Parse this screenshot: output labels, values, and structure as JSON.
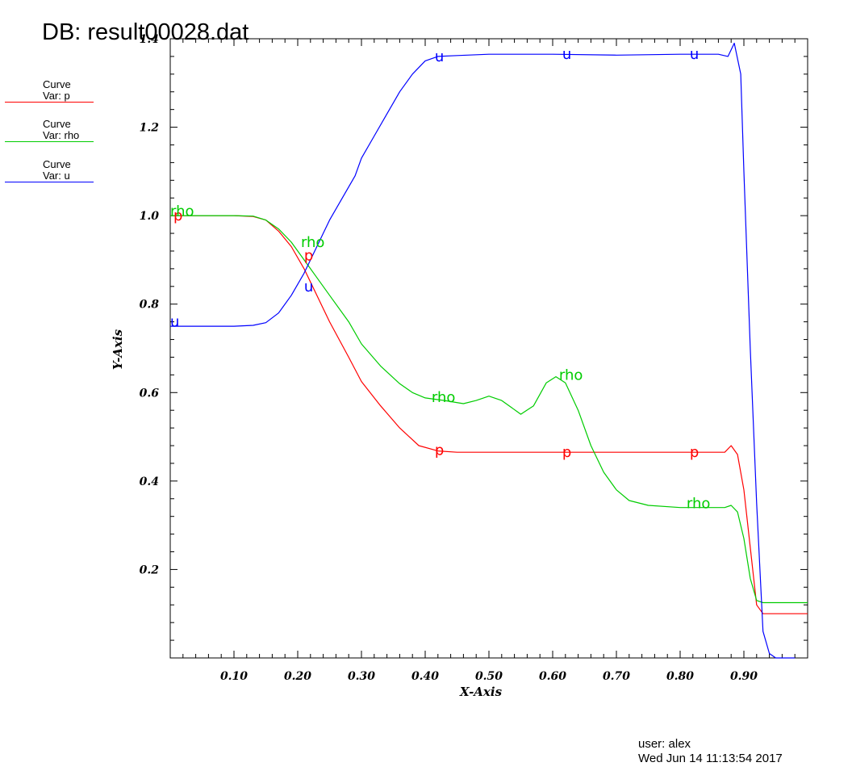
{
  "header": {
    "db_title": "DB: result00028.dat"
  },
  "legend": [
    {
      "line1": "Curve",
      "line2": "Var: p",
      "color": "#ff0000"
    },
    {
      "line1": "Curve",
      "line2": "Var: rho",
      "color": "#00cc00"
    },
    {
      "line1": "Curve",
      "line2": "Var: u",
      "color": "#0000ff"
    }
  ],
  "footer": {
    "user": "user: alex",
    "date": "Wed Jun 14 11:13:54 2017"
  },
  "chart_data": {
    "type": "line",
    "title": "",
    "xlabel": "X-Axis",
    "ylabel": "Y-Axis",
    "xlim": [
      0.0,
      1.0
    ],
    "ylim": [
      0.0,
      1.4
    ],
    "xticks": [
      0.1,
      0.2,
      0.3,
      0.4,
      0.5,
      0.6,
      0.7,
      0.8,
      0.9
    ],
    "xtick_labels": [
      "0.10",
      "0.20",
      "0.30",
      "0.40",
      "0.50",
      "0.60",
      "0.70",
      "0.80",
      "0.90"
    ],
    "yticks": [
      0.2,
      0.4,
      0.6,
      0.8,
      1.0,
      1.2,
      1.4
    ],
    "ytick_labels": [
      "0.2",
      "0.4",
      "0.6",
      "0.8",
      "1.0",
      "1.2",
      "1.4"
    ],
    "series": [
      {
        "name": "p",
        "color": "#ff0000",
        "points": [
          [
            0.0,
            1.0
          ],
          [
            0.05,
            1.0
          ],
          [
            0.1,
            1.0
          ],
          [
            0.13,
            0.998
          ],
          [
            0.15,
            0.99
          ],
          [
            0.17,
            0.965
          ],
          [
            0.19,
            0.93
          ],
          [
            0.21,
            0.88
          ],
          [
            0.23,
            0.82
          ],
          [
            0.25,
            0.76
          ],
          [
            0.28,
            0.68
          ],
          [
            0.3,
            0.625
          ],
          [
            0.33,
            0.57
          ],
          [
            0.36,
            0.52
          ],
          [
            0.39,
            0.48
          ],
          [
            0.42,
            0.468
          ],
          [
            0.45,
            0.465
          ],
          [
            0.5,
            0.465
          ],
          [
            0.6,
            0.465
          ],
          [
            0.7,
            0.465
          ],
          [
            0.8,
            0.465
          ],
          [
            0.87,
            0.465
          ],
          [
            0.88,
            0.48
          ],
          [
            0.89,
            0.46
          ],
          [
            0.9,
            0.38
          ],
          [
            0.91,
            0.25
          ],
          [
            0.92,
            0.12
          ],
          [
            0.93,
            0.1
          ],
          [
            0.95,
            0.1
          ],
          [
            1.0,
            0.1
          ]
        ],
        "label_points": [
          [
            0.005,
            1.0
          ],
          [
            0.21,
            0.91
          ],
          [
            0.415,
            0.47
          ],
          [
            0.615,
            0.465
          ],
          [
            0.815,
            0.465
          ]
        ]
      },
      {
        "name": "rho",
        "color": "#00cc00",
        "points": [
          [
            0.0,
            1.0
          ],
          [
            0.05,
            1.0
          ],
          [
            0.1,
            1.0
          ],
          [
            0.13,
            0.999
          ],
          [
            0.15,
            0.99
          ],
          [
            0.17,
            0.97
          ],
          [
            0.19,
            0.94
          ],
          [
            0.21,
            0.9
          ],
          [
            0.23,
            0.86
          ],
          [
            0.25,
            0.82
          ],
          [
            0.28,
            0.76
          ],
          [
            0.3,
            0.71
          ],
          [
            0.33,
            0.66
          ],
          [
            0.36,
            0.62
          ],
          [
            0.38,
            0.6
          ],
          [
            0.4,
            0.588
          ],
          [
            0.43,
            0.582
          ],
          [
            0.46,
            0.575
          ],
          [
            0.48,
            0.582
          ],
          [
            0.5,
            0.592
          ],
          [
            0.52,
            0.582
          ],
          [
            0.55,
            0.551
          ],
          [
            0.57,
            0.57
          ],
          [
            0.59,
            0.622
          ],
          [
            0.605,
            0.636
          ],
          [
            0.62,
            0.622
          ],
          [
            0.64,
            0.56
          ],
          [
            0.66,
            0.48
          ],
          [
            0.68,
            0.42
          ],
          [
            0.7,
            0.38
          ],
          [
            0.72,
            0.356
          ],
          [
            0.75,
            0.345
          ],
          [
            0.8,
            0.34
          ],
          [
            0.87,
            0.34
          ],
          [
            0.88,
            0.345
          ],
          [
            0.89,
            0.33
          ],
          [
            0.9,
            0.27
          ],
          [
            0.91,
            0.18
          ],
          [
            0.92,
            0.13
          ],
          [
            0.93,
            0.125
          ],
          [
            1.0,
            0.125
          ]
        ],
        "label_points": [
          [
            0.0,
            1.01
          ],
          [
            0.205,
            0.94
          ],
          [
            0.41,
            0.59
          ],
          [
            0.61,
            0.64
          ],
          [
            0.81,
            0.35
          ]
        ]
      },
      {
        "name": "u",
        "color": "#0000ff",
        "points": [
          [
            0.0,
            0.75
          ],
          [
            0.05,
            0.75
          ],
          [
            0.1,
            0.75
          ],
          [
            0.13,
            0.752
          ],
          [
            0.15,
            0.758
          ],
          [
            0.17,
            0.78
          ],
          [
            0.19,
            0.82
          ],
          [
            0.21,
            0.87
          ],
          [
            0.23,
            0.93
          ],
          [
            0.25,
            0.99
          ],
          [
            0.27,
            1.04
          ],
          [
            0.29,
            1.09
          ],
          [
            0.3,
            1.13
          ],
          [
            0.32,
            1.18
          ],
          [
            0.34,
            1.23
          ],
          [
            0.36,
            1.28
          ],
          [
            0.38,
            1.32
          ],
          [
            0.4,
            1.35
          ],
          [
            0.42,
            1.36
          ],
          [
            0.45,
            1.362
          ],
          [
            0.5,
            1.365
          ],
          [
            0.6,
            1.365
          ],
          [
            0.7,
            1.363
          ],
          [
            0.8,
            1.365
          ],
          [
            0.86,
            1.365
          ],
          [
            0.875,
            1.36
          ],
          [
            0.885,
            1.39
          ],
          [
            0.895,
            1.32
          ],
          [
            0.9,
            1.1
          ],
          [
            0.91,
            0.7
          ],
          [
            0.92,
            0.35
          ],
          [
            0.93,
            0.06
          ],
          [
            0.94,
            0.01
          ],
          [
            0.95,
            0.0
          ],
          [
            0.98,
            0.0
          ]
        ],
        "label_points": [
          [
            0.0,
            0.76
          ],
          [
            0.21,
            0.84
          ],
          [
            0.415,
            1.36
          ],
          [
            0.615,
            1.365
          ],
          [
            0.815,
            1.365
          ]
        ]
      }
    ]
  }
}
